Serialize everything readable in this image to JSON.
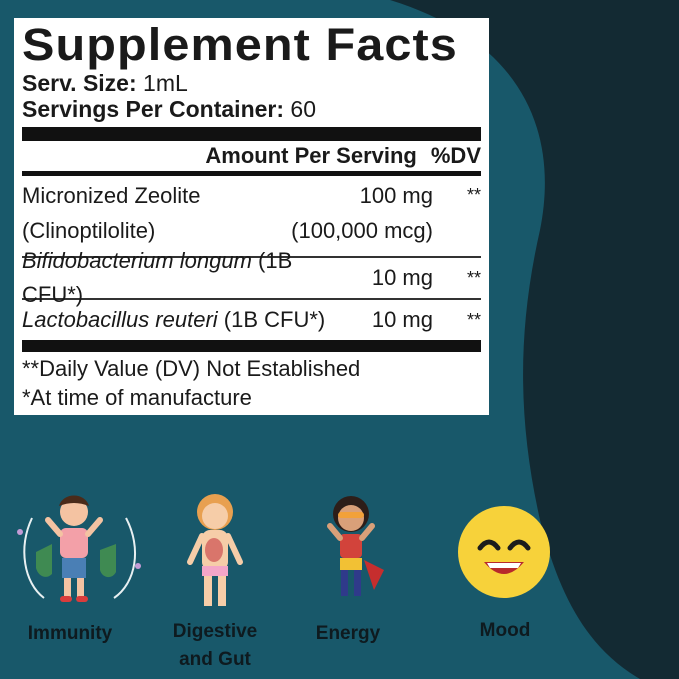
{
  "panel": {
    "title": "Supplement Facts",
    "serving_size_label": "Serv. Size:",
    "serving_size_value": "1mL",
    "servings_label": "Servings Per Container:",
    "servings_value": "60",
    "header_amount": "Amount Per Serving",
    "header_dv": "%DV",
    "ingredients": [
      {
        "name": "Micronized Zeolite",
        "name2": "(Clinoptilolite)",
        "amount": "100 mg",
        "amount2": "(100,000 mcg)",
        "dv": "**"
      },
      {
        "name_italic": "Bifidobacterium longum",
        "name_rest": " (1B CFU*)",
        "amount": "10 mg",
        "dv": "**"
      },
      {
        "name_italic": "Lactobacillus reuteri",
        "name_rest": " (1B CFU*)",
        "amount": "10 mg",
        "dv": "**"
      }
    ],
    "footnote_1": "**Daily Value (DV) Not Established",
    "footnote_2": "*At time of manufacture"
  },
  "benefits": [
    {
      "label": "Immunity",
      "icon": "child-shield-icon"
    },
    {
      "label": "Digestive",
      "label2": "and Gut",
      "icon": "digestive-body-icon"
    },
    {
      "label": "Energy",
      "icon": "superhero-kid-icon"
    },
    {
      "label": "Mood",
      "icon": "smiley-face-icon"
    }
  ],
  "colors": {
    "teal_bg": "#18586a",
    "dark_band": "#132a33",
    "panel_bg": "#ffffff",
    "smiley_yellow": "#f7d23a"
  }
}
